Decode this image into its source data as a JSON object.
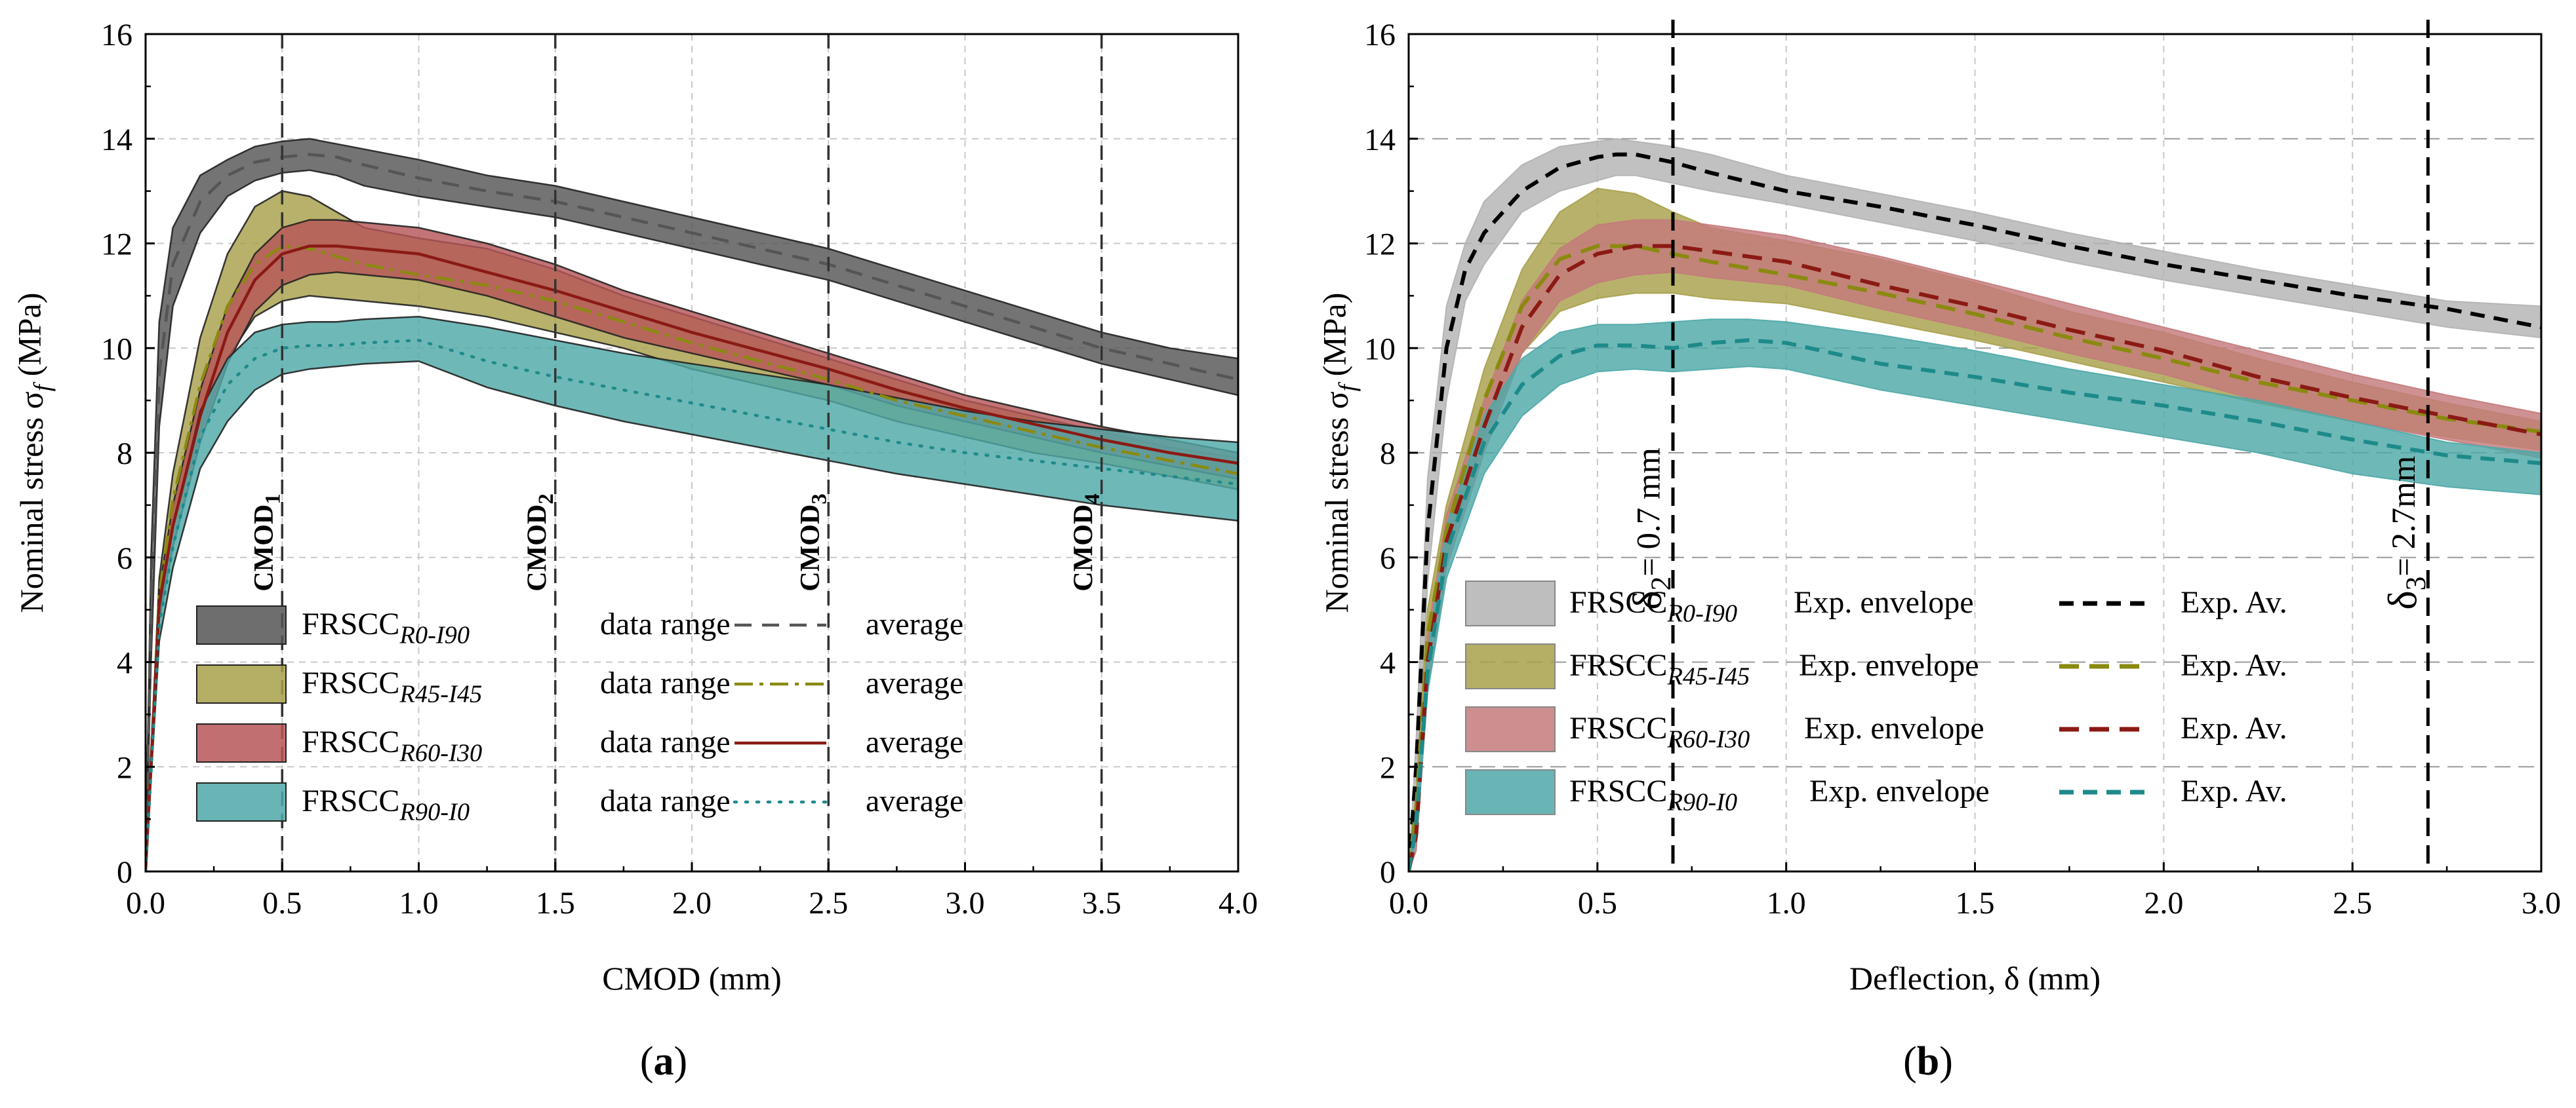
{
  "chart_data": [
    {
      "id": "a",
      "type": "area",
      "panel_label": "(a)",
      "panel_letter": "a",
      "xlabel": "CMOD (mm)",
      "ylabel": "Nominal stress σ",
      "ylabel_sub": "f",
      "ylabel_unit": "(MPa)",
      "xlim": [
        0,
        4
      ],
      "ylim": [
        0,
        16
      ],
      "xticks": [
        0,
        0.5,
        1,
        1.5,
        2,
        2.5,
        3,
        3.5,
        4
      ],
      "xtick_labels": [
        "0.0",
        "0.5",
        "1.0",
        "1.5",
        "2.0",
        "2.5",
        "3.0",
        "3.5",
        "4.0"
      ],
      "yticks": [
        0,
        2,
        4,
        6,
        8,
        10,
        12,
        14,
        16
      ],
      "ytick_labels": [
        "0",
        "2",
        "4",
        "6",
        "8",
        "10",
        "12",
        "14",
        "16"
      ],
      "grid": true,
      "markers": [
        {
          "x": 0.5,
          "label": "CMOD",
          "sub": "1"
        },
        {
          "x": 1.5,
          "label": "CMOD",
          "sub": "2"
        },
        {
          "x": 2.5,
          "label": "CMOD",
          "sub": "3"
        },
        {
          "x": 3.5,
          "label": "CMOD",
          "sub": "4"
        }
      ],
      "series": [
        {
          "name": "FRSCC",
          "sub": "R0-I90",
          "band_label": "data range",
          "line_label": "average",
          "color": "#555555",
          "line_color": "#555555",
          "dash": "26,16",
          "x": [
            0,
            0.02,
            0.05,
            0.1,
            0.2,
            0.3,
            0.4,
            0.5,
            0.6,
            0.7,
            0.8,
            1.0,
            1.25,
            1.5,
            1.75,
            2.0,
            2.25,
            2.5,
            2.75,
            3.0,
            3.25,
            3.5,
            3.75,
            4.0
          ],
          "upper": [
            0,
            6.0,
            10.5,
            12.3,
            13.3,
            13.6,
            13.85,
            13.95,
            14.0,
            13.9,
            13.8,
            13.6,
            13.3,
            13.1,
            12.8,
            12.5,
            12.2,
            11.9,
            11.5,
            11.1,
            10.7,
            10.3,
            10.0,
            9.8
          ],
          "avg": [
            0,
            5.0,
            9.5,
            11.6,
            12.8,
            13.3,
            13.55,
            13.65,
            13.7,
            13.65,
            13.5,
            13.25,
            13.0,
            12.8,
            12.5,
            12.2,
            11.9,
            11.6,
            11.2,
            10.8,
            10.4,
            10.0,
            9.7,
            9.4
          ],
          "lower": [
            0,
            4.0,
            8.5,
            10.8,
            12.2,
            12.9,
            13.2,
            13.35,
            13.4,
            13.3,
            13.1,
            12.9,
            12.7,
            12.5,
            12.2,
            11.9,
            11.6,
            11.3,
            10.9,
            10.5,
            10.1,
            9.7,
            9.4,
            9.1
          ]
        },
        {
          "name": "FRSCC",
          "sub": "R45-I45",
          "band_label": "data range",
          "line_label": "average",
          "color": "#a8a04a",
          "line_color": "#8a8a10",
          "dash": "28,10,6,10",
          "x": [
            0,
            0.05,
            0.1,
            0.2,
            0.3,
            0.4,
            0.5,
            0.6,
            0.7,
            0.8,
            1.0,
            1.25,
            1.5,
            1.75,
            2.0,
            2.25,
            2.5,
            2.75,
            3.0,
            3.25,
            3.5,
            3.75,
            4.0
          ],
          "upper": [
            0,
            5.6,
            7.6,
            10.2,
            11.8,
            12.7,
            13.0,
            12.9,
            12.6,
            12.3,
            12.1,
            11.9,
            11.5,
            11.0,
            10.6,
            10.2,
            9.8,
            9.4,
            9.0,
            8.7,
            8.4,
            8.1,
            7.9
          ],
          "avg": [
            0,
            5.3,
            7.1,
            9.3,
            10.8,
            11.6,
            11.95,
            11.9,
            11.75,
            11.6,
            11.4,
            11.2,
            10.9,
            10.5,
            10.1,
            9.75,
            9.4,
            9.0,
            8.7,
            8.4,
            8.1,
            7.85,
            7.6
          ],
          "lower": [
            0,
            5.0,
            6.6,
            8.4,
            9.8,
            10.6,
            10.9,
            11.0,
            10.95,
            10.9,
            10.8,
            10.6,
            10.3,
            10.0,
            9.6,
            9.3,
            9.0,
            8.6,
            8.3,
            8.0,
            7.8,
            7.55,
            7.3
          ]
        },
        {
          "name": "FRSCC",
          "sub": "R60-I30",
          "band_label": "data range",
          "line_label": "average",
          "color": "#b65658",
          "line_color": "#8b1a14",
          "dash": "",
          "x": [
            0,
            0.05,
            0.1,
            0.2,
            0.3,
            0.4,
            0.5,
            0.6,
            0.7,
            0.8,
            1.0,
            1.25,
            1.5,
            1.75,
            2.0,
            2.25,
            2.5,
            2.75,
            3.0,
            3.25,
            3.5,
            3.75,
            4.0
          ],
          "upper": [
            0,
            5.4,
            7.0,
            9.2,
            10.8,
            11.8,
            12.3,
            12.45,
            12.45,
            12.4,
            12.3,
            12.0,
            11.6,
            11.1,
            10.7,
            10.3,
            9.9,
            9.5,
            9.1,
            8.8,
            8.5,
            8.25,
            8.0
          ],
          "avg": [
            0,
            5.1,
            6.6,
            8.7,
            10.3,
            11.3,
            11.8,
            11.95,
            11.95,
            11.9,
            11.8,
            11.45,
            11.1,
            10.7,
            10.3,
            9.95,
            9.6,
            9.2,
            8.85,
            8.55,
            8.25,
            8.0,
            7.8
          ],
          "lower": [
            0,
            4.8,
            6.2,
            8.2,
            9.7,
            10.7,
            11.2,
            11.4,
            11.45,
            11.4,
            11.3,
            11.0,
            10.6,
            10.2,
            9.9,
            9.6,
            9.3,
            8.9,
            8.6,
            8.3,
            8.0,
            7.75,
            7.5
          ]
        },
        {
          "name": "FRSCC",
          "sub": "R90-I0",
          "band_label": "data range",
          "line_label": "average",
          "color": "#4fa8a8",
          "line_color": "#1e8a8a",
          "dash": "3,14",
          "x": [
            0,
            0.05,
            0.1,
            0.2,
            0.3,
            0.4,
            0.5,
            0.6,
            0.7,
            0.8,
            1.0,
            1.25,
            1.5,
            1.75,
            2.0,
            2.25,
            2.5,
            2.75,
            3.0,
            3.25,
            3.5,
            3.75,
            4.0
          ],
          "upper": [
            0,
            5.0,
            6.6,
            8.8,
            9.8,
            10.3,
            10.45,
            10.5,
            10.5,
            10.55,
            10.6,
            10.4,
            10.15,
            9.9,
            9.7,
            9.5,
            9.3,
            9.05,
            8.8,
            8.6,
            8.45,
            8.3,
            8.2
          ],
          "avg": [
            0,
            4.7,
            6.2,
            8.3,
            9.3,
            9.8,
            10.0,
            10.05,
            10.05,
            10.1,
            10.15,
            9.75,
            9.45,
            9.2,
            8.95,
            8.7,
            8.45,
            8.2,
            8.0,
            7.85,
            7.7,
            7.55,
            7.4
          ],
          "lower": [
            0,
            4.4,
            5.8,
            7.7,
            8.6,
            9.2,
            9.5,
            9.6,
            9.65,
            9.7,
            9.75,
            9.25,
            8.9,
            8.6,
            8.35,
            8.1,
            7.85,
            7.6,
            7.4,
            7.2,
            7.0,
            6.85,
            6.7
          ]
        }
      ]
    },
    {
      "id": "b",
      "type": "area",
      "panel_label": "(b)",
      "panel_letter": "b",
      "xlabel": "Deflection, δ (mm)",
      "ylabel": "Nominal stress σ",
      "ylabel_sub": "f",
      "ylabel_unit": "(MPa)",
      "xlim": [
        0,
        3
      ],
      "ylim": [
        0,
        16
      ],
      "xticks": [
        0,
        0.5,
        1,
        1.5,
        2,
        2.5,
        3
      ],
      "xtick_labels": [
        "0.0",
        "0.5",
        "1.0",
        "1.5",
        "2.0",
        "2.5",
        "3.0"
      ],
      "yticks": [
        0,
        2,
        4,
        6,
        8,
        10,
        12,
        14,
        16
      ],
      "ytick_labels": [
        "0",
        "2",
        "4",
        "6",
        "8",
        "10",
        "12",
        "14",
        "16"
      ],
      "grid": true,
      "markers": [
        {
          "x": 0.7,
          "label": "δ",
          "sub": "2",
          "value": "= 0.7 mm"
        },
        {
          "x": 2.7,
          "label": "δ",
          "sub": "3",
          "value": "= 2.7mm"
        }
      ],
      "series": [
        {
          "name": "FRSCC",
          "sub": "R0-I90",
          "band_label": "Exp. envelope",
          "line_label": "Exp. Av.",
          "color": "#b3b3b3",
          "line_color": "#000000",
          "dash": "22,14",
          "x": [
            0,
            0.02,
            0.05,
            0.1,
            0.15,
            0.2,
            0.3,
            0.4,
            0.5,
            0.55,
            0.6,
            0.7,
            0.8,
            1.0,
            1.25,
            1.5,
            1.75,
            2.0,
            2.25,
            2.5,
            2.75,
            3.0
          ],
          "upper": [
            0,
            2.5,
            7.5,
            10.8,
            12.0,
            12.8,
            13.5,
            13.85,
            13.95,
            14.0,
            13.95,
            13.85,
            13.7,
            13.3,
            12.95,
            12.6,
            12.2,
            11.85,
            11.5,
            11.2,
            10.9,
            10.8
          ],
          "avg": [
            0,
            2.0,
            6.5,
            10.0,
            11.5,
            12.2,
            13.0,
            13.45,
            13.65,
            13.7,
            13.7,
            13.55,
            13.35,
            13.0,
            12.7,
            12.35,
            11.95,
            11.6,
            11.3,
            11.0,
            10.75,
            10.4
          ],
          "lower": [
            0,
            1.5,
            5.5,
            9.0,
            10.9,
            11.6,
            12.6,
            13.0,
            13.2,
            13.3,
            13.3,
            13.15,
            13.0,
            12.75,
            12.4,
            12.05,
            11.65,
            11.3,
            11.0,
            10.7,
            10.4,
            10.2
          ]
        },
        {
          "name": "FRSCC",
          "sub": "R45-I45",
          "band_label": "Exp. envelope",
          "line_label": "Exp. Av.",
          "color": "#a8a04a",
          "line_color": "#8a8a10",
          "dash": "30,16",
          "x": [
            0,
            0.02,
            0.05,
            0.1,
            0.2,
            0.3,
            0.4,
            0.5,
            0.6,
            0.7,
            0.8,
            1.0,
            1.25,
            1.5,
            1.75,
            2.0,
            2.25,
            2.5,
            2.75,
            3.0
          ],
          "upper": [
            0,
            1.5,
            5.0,
            7.0,
            9.6,
            11.5,
            12.6,
            13.05,
            12.95,
            12.6,
            12.3,
            12.05,
            11.7,
            11.25,
            10.7,
            10.3,
            9.8,
            9.35,
            8.95,
            8.6
          ],
          "avg": [
            0,
            1.2,
            4.5,
            6.5,
            9.0,
            10.8,
            11.7,
            11.95,
            11.95,
            11.8,
            11.65,
            11.4,
            11.05,
            10.65,
            10.2,
            9.8,
            9.35,
            9.0,
            8.65,
            8.4
          ],
          "lower": [
            0,
            0.9,
            4.0,
            6.0,
            8.3,
            9.9,
            10.7,
            10.95,
            11.05,
            11.05,
            10.95,
            10.85,
            10.5,
            10.15,
            9.75,
            9.35,
            8.95,
            8.6,
            8.3,
            8.05
          ]
        },
        {
          "name": "FRSCC",
          "sub": "R60-I30",
          "band_label": "Exp. envelope",
          "line_label": "Exp. Av.",
          "color": "#c47a7c",
          "line_color": "#8b1a14",
          "dash": "30,16",
          "x": [
            0,
            0.02,
            0.05,
            0.1,
            0.2,
            0.3,
            0.4,
            0.5,
            0.6,
            0.7,
            0.8,
            1.0,
            1.25,
            1.5,
            1.75,
            2.0,
            2.25,
            2.5,
            2.75,
            3.0
          ],
          "upper": [
            0,
            1.0,
            4.5,
            6.8,
            9.0,
            10.9,
            11.9,
            12.35,
            12.45,
            12.45,
            12.35,
            12.15,
            11.75,
            11.3,
            10.85,
            10.4,
            9.95,
            9.5,
            9.1,
            8.75
          ],
          "avg": [
            0,
            0.7,
            4.0,
            6.3,
            8.5,
            10.4,
            11.4,
            11.8,
            11.95,
            11.95,
            11.85,
            11.65,
            11.2,
            10.8,
            10.35,
            9.95,
            9.45,
            9.05,
            8.7,
            8.35
          ],
          "lower": [
            0,
            0.4,
            3.5,
            5.8,
            8.0,
            9.9,
            10.9,
            11.25,
            11.4,
            11.45,
            11.35,
            11.2,
            10.75,
            10.35,
            9.9,
            9.5,
            9.0,
            8.6,
            8.25,
            7.9
          ]
        },
        {
          "name": "FRSCC",
          "sub": "R90-I0",
          "band_label": "Exp. envelope",
          "line_label": "Exp. Av.",
          "color": "#4fa8a8",
          "line_color": "#1e8a8a",
          "dash": "22,14",
          "x": [
            0,
            0.02,
            0.05,
            0.1,
            0.2,
            0.3,
            0.4,
            0.5,
            0.6,
            0.7,
            0.8,
            0.9,
            1.0,
            1.25,
            1.5,
            1.75,
            2.0,
            2.25,
            2.5,
            2.75,
            3.0
          ],
          "upper": [
            0,
            1.2,
            4.2,
            6.6,
            8.7,
            9.8,
            10.3,
            10.45,
            10.45,
            10.5,
            10.55,
            10.55,
            10.5,
            10.25,
            9.95,
            9.6,
            9.3,
            9.0,
            8.6,
            8.2,
            8.0
          ],
          "avg": [
            0,
            0.9,
            3.8,
            6.1,
            8.2,
            9.3,
            9.85,
            10.05,
            10.05,
            10.0,
            10.1,
            10.15,
            10.1,
            9.7,
            9.45,
            9.15,
            8.9,
            8.6,
            8.25,
            7.95,
            7.8
          ],
          "lower": [
            0,
            0.6,
            3.4,
            5.6,
            7.6,
            8.7,
            9.3,
            9.55,
            9.6,
            9.55,
            9.6,
            9.65,
            9.6,
            9.2,
            8.9,
            8.6,
            8.3,
            8.0,
            7.6,
            7.35,
            7.2
          ]
        }
      ]
    }
  ]
}
